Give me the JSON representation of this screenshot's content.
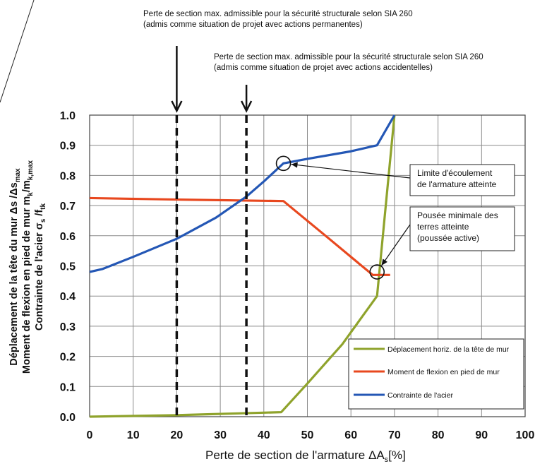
{
  "chart_data": {
    "type": "line",
    "xlabel_main": "Perte de section de l'armature ΔA",
    "xlabel_sub": "s",
    "xlabel_tail": "[%]",
    "ylabel_lines": [
      {
        "text": "Déplacement de la tête du mur  Δs /Δs",
        "sub": "max"
      },
      {
        "text": "Moment de flexion en pied de mur  m",
        "sub": "k",
        "mid": "/m",
        "sub2": "k,max"
      },
      {
        "text": "Contrainte de l'acier  σ",
        "sub": "s",
        "mid": " /f",
        "sub2": "tk"
      }
    ],
    "xlim": [
      0,
      100
    ],
    "ylim": [
      0,
      1
    ],
    "xticks": [
      "0",
      "10",
      "20",
      "30",
      "40",
      "50",
      "60",
      "70",
      "80",
      "90",
      "100"
    ],
    "yticks": [
      "0.0",
      "0.1",
      "0.2",
      "0.3",
      "0.4",
      "0.5",
      "0.6",
      "0.7",
      "0.8",
      "0.9",
      "1.0"
    ],
    "grid": true,
    "legend_position": "bottom-right",
    "series": [
      {
        "name": "Déplacement horiz. de la tête de mur",
        "color": "#8fa32c",
        "x": [
          0,
          20,
          44,
          50,
          58,
          62,
          66,
          70
        ],
        "y": [
          0.0,
          0.005,
          0.015,
          0.11,
          0.24,
          0.32,
          0.4,
          1.0
        ]
      },
      {
        "name": "Moment de flexion en pied de mur",
        "color": "#e8481f",
        "x": [
          0,
          20,
          44.5,
          55,
          65,
          67,
          69
        ],
        "y": [
          0.725,
          0.72,
          0.715,
          0.59,
          0.47,
          0.47,
          0.47
        ]
      },
      {
        "name": "Contrainte de l'acier",
        "color": "#2457b5",
        "x": [
          0,
          3,
          10,
          20,
          29,
          36,
          40,
          44.5,
          50,
          60,
          66,
          70
        ],
        "y": [
          0.48,
          0.49,
          0.53,
          0.59,
          0.66,
          0.73,
          0.78,
          0.84,
          0.855,
          0.88,
          0.9,
          1.0
        ]
      }
    ],
    "vlines": [
      {
        "x": 20,
        "label_line1": "Perte de section max. admissible pour la sécurité structurale selon SIA 260",
        "label_line2": "(admis comme situation de projet avec actions permanentes)"
      },
      {
        "x": 36,
        "label_line1": "Perte de section max. admissible pour la sécurité structurale selon SIA 260",
        "label_line2": "(admis comme situation de projet avec actions accidentelles)"
      }
    ],
    "callouts": [
      {
        "line1": "Limite d'écoulement",
        "line2": "de l'armature atteinte",
        "line3": "",
        "x": 44.5,
        "y": 0.84
      },
      {
        "line1": "Pousée minimale des",
        "line2": "terres atteinte",
        "line3": "(poussée active)",
        "x": 66,
        "y": 0.48
      }
    ]
  }
}
